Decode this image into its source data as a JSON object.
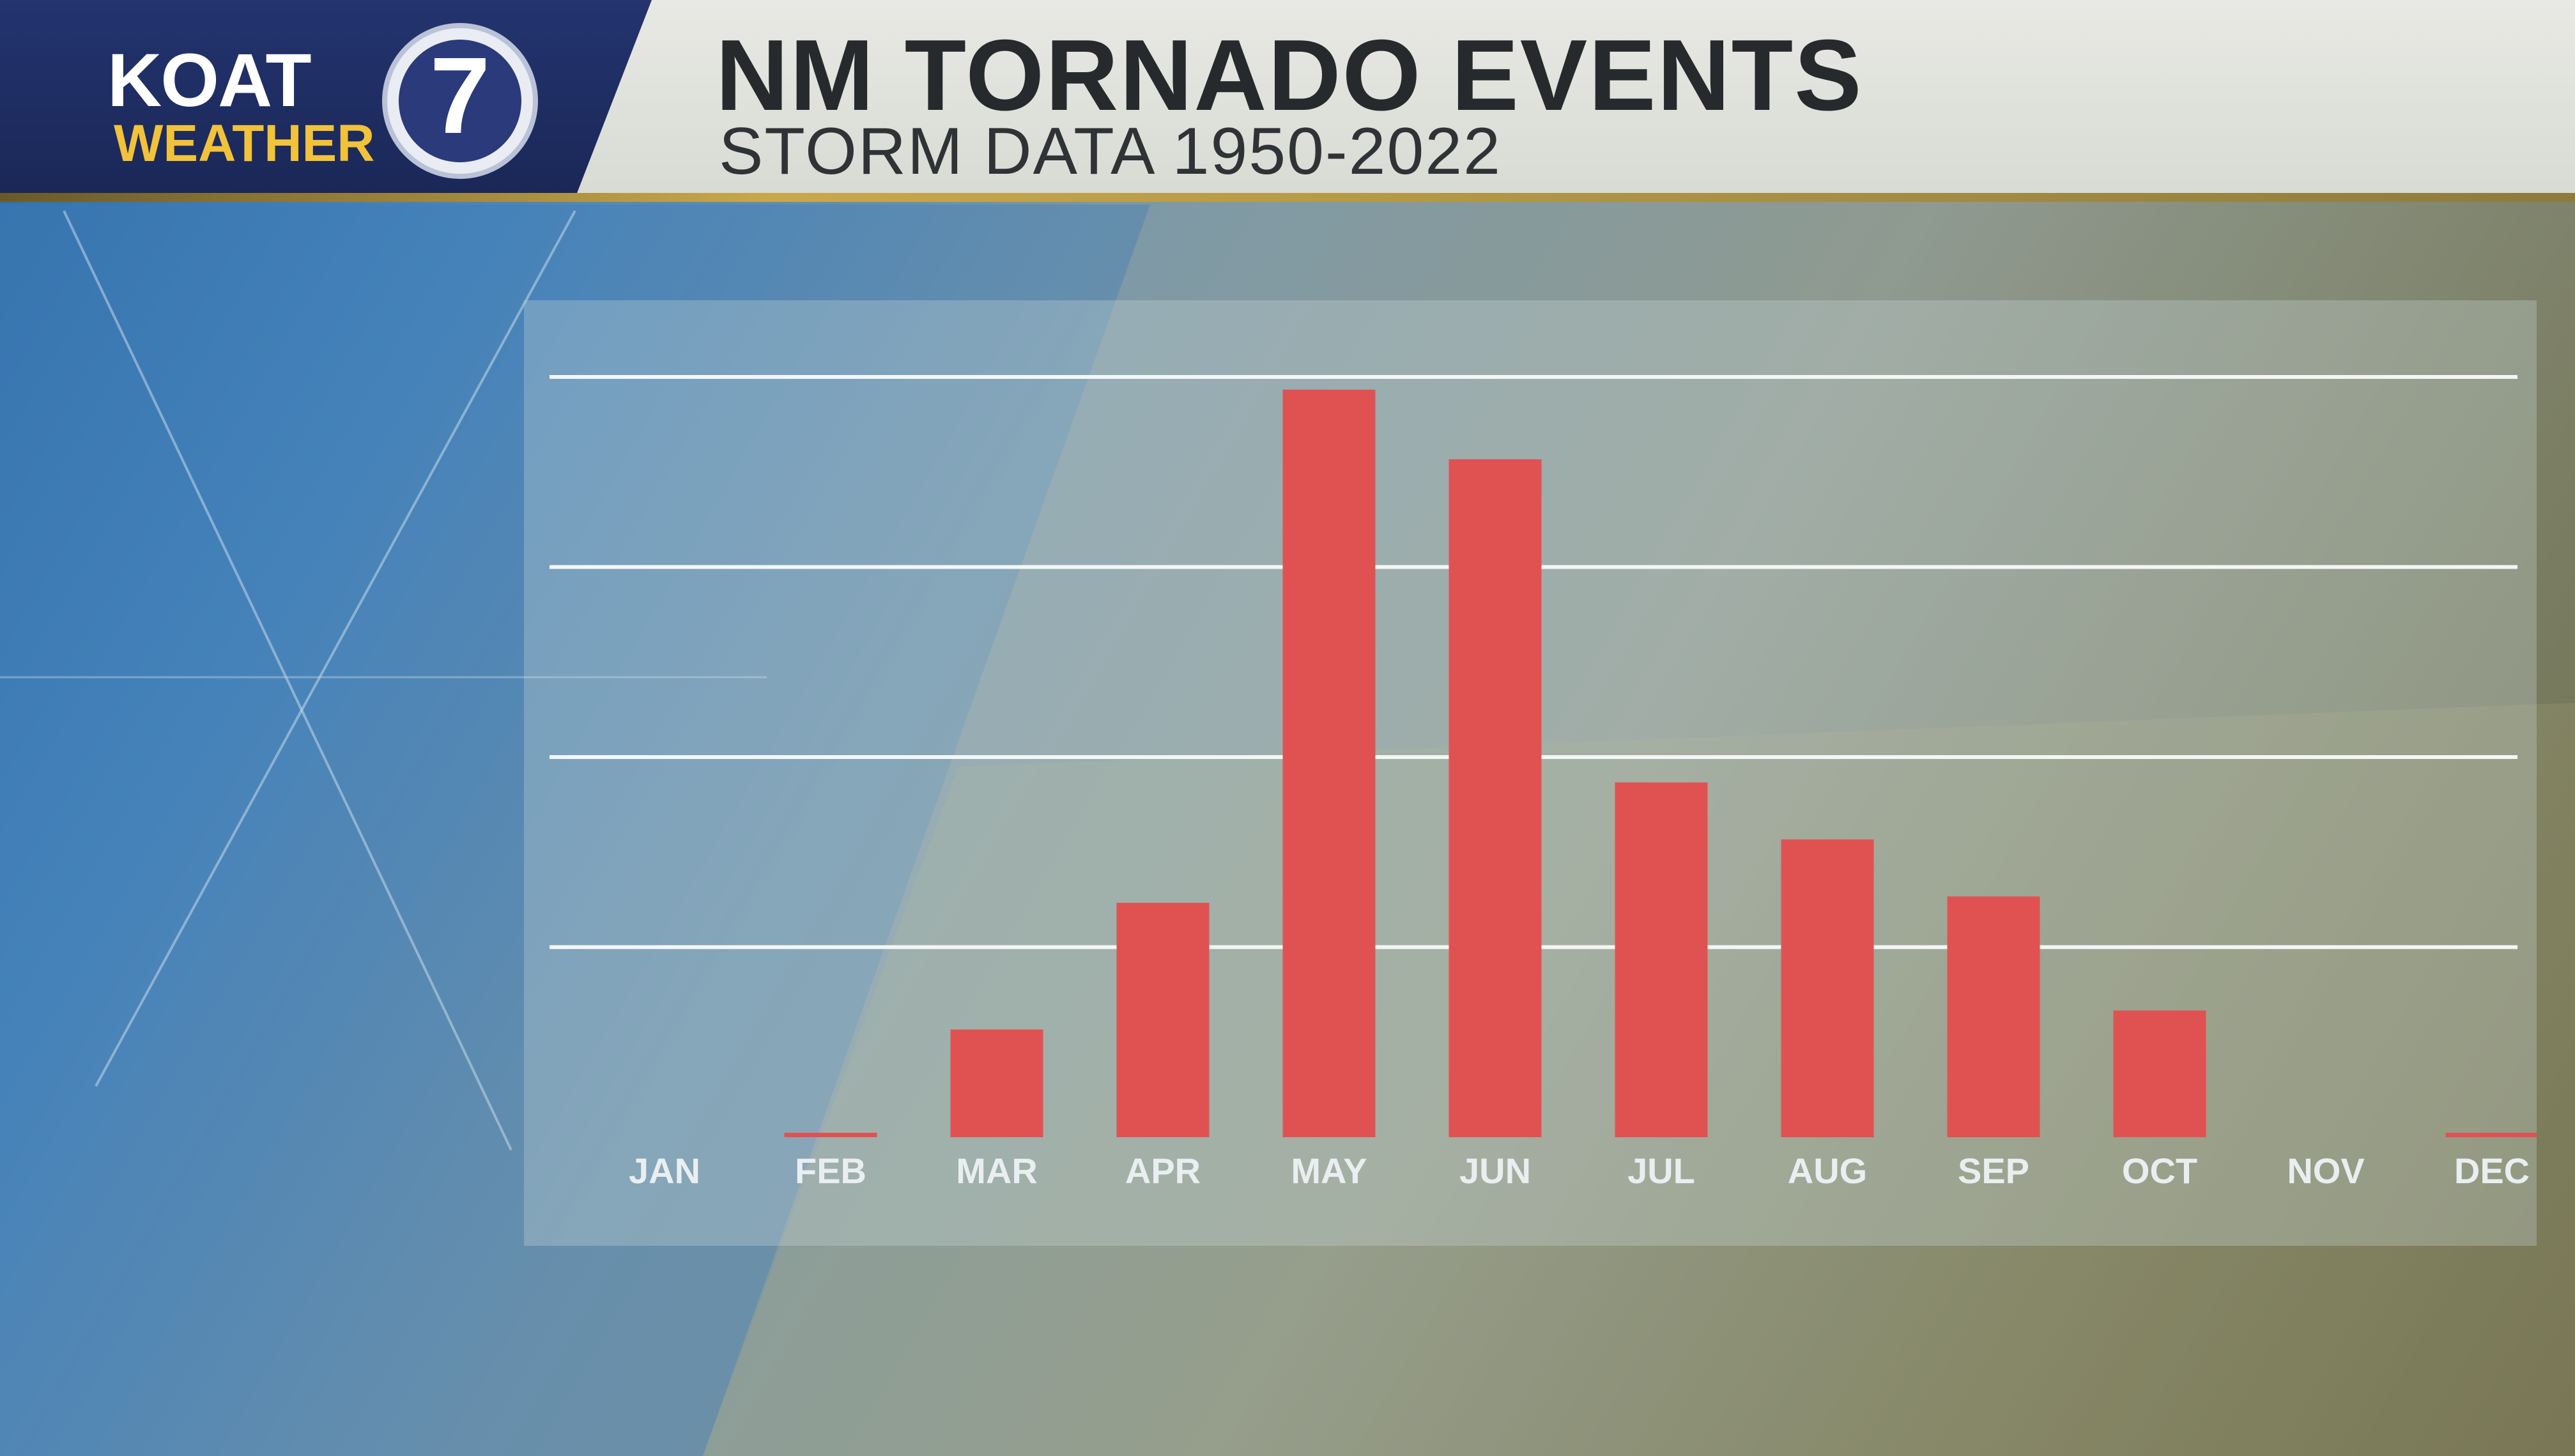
{
  "brand": {
    "name": "KOAT",
    "sub": "WEATHER",
    "channel": "7",
    "colors": {
      "navy": "#1e2d64",
      "gold": "#f1c23a"
    }
  },
  "header": {
    "title": "NM TORNADO EVENTS",
    "subtitle": "STORM DATA 1950-2022"
  },
  "chart_data": {
    "type": "bar",
    "categories": [
      "JAN",
      "FEB",
      "MAR",
      "APR",
      "MAY",
      "JUN",
      "JUL",
      "AUG",
      "SEP",
      "OCT",
      "NOV",
      "DEC"
    ],
    "values": [
      0,
      0.3,
      17,
      37,
      118,
      107,
      56,
      47,
      38,
      20,
      0,
      0.3
    ],
    "ylim": [
      0,
      120
    ],
    "gridlines": [
      30,
      60,
      90,
      120
    ],
    "grid": true,
    "bar_color": "#e05252",
    "title": "",
    "xlabel": "",
    "ylabel": ""
  }
}
